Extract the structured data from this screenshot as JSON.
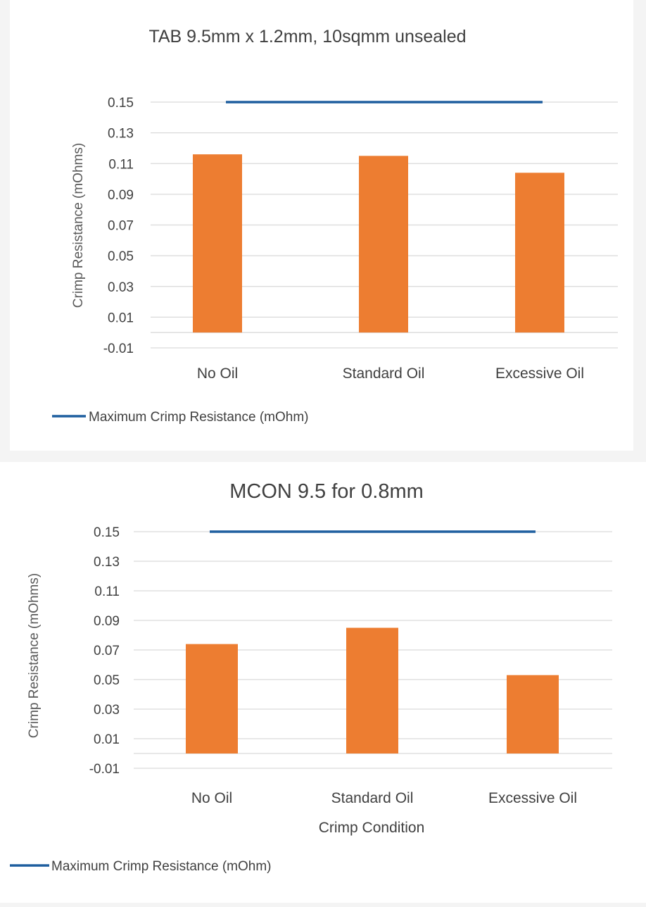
{
  "chart_data": [
    {
      "type": "bar",
      "title": "TAB 9.5mm x 1.2mm, 10sqmm unsealed",
      "categories": [
        "No Oil",
        "Standard Oil",
        "Excessive Oil"
      ],
      "series": [
        {
          "name": "Crimp Resistance",
          "values": [
            0.116,
            0.115,
            0.104
          ],
          "color": "#ed7d31"
        },
        {
          "name": "Maximum Crimp Resistance (mOhm)",
          "type": "line",
          "values": [
            0.15,
            0.15,
            0.15
          ],
          "color": "#1f5f9f"
        }
      ],
      "ylabel": "Crimp Resistance (mOhms)",
      "xlabel": "",
      "ylim": [
        -0.01,
        0.15
      ],
      "yticks": [
        "-0.01",
        "0.01",
        "0.03",
        "0.05",
        "0.07",
        "0.09",
        "0.11",
        "0.13",
        "0.15"
      ],
      "legend": {
        "label": "Maximum Crimp Resistance (mOhm)",
        "position": "bottom-left"
      }
    },
    {
      "type": "bar",
      "title": "MCON 9.5 for 0.8mm",
      "categories": [
        "No Oil",
        "Standard Oil",
        "Excessive Oil"
      ],
      "series": [
        {
          "name": "Crimp Resistance",
          "values": [
            0.074,
            0.085,
            0.053
          ],
          "color": "#ed7d31"
        },
        {
          "name": "Maximum Crimp Resistance (mOhm)",
          "type": "line",
          "values": [
            0.15,
            0.15,
            0.15
          ],
          "color": "#1f5f9f"
        }
      ],
      "ylabel": "Crimp Resistance (mOhms)",
      "xlabel": "Crimp Condition",
      "ylim": [
        -0.01,
        0.15
      ],
      "yticks": [
        "-0.01",
        "0.01",
        "0.03",
        "0.05",
        "0.07",
        "0.09",
        "0.11",
        "0.13",
        "0.15"
      ],
      "legend": {
        "label": "Maximum Crimp Resistance (mOhm)",
        "position": "bottom-left"
      }
    }
  ]
}
